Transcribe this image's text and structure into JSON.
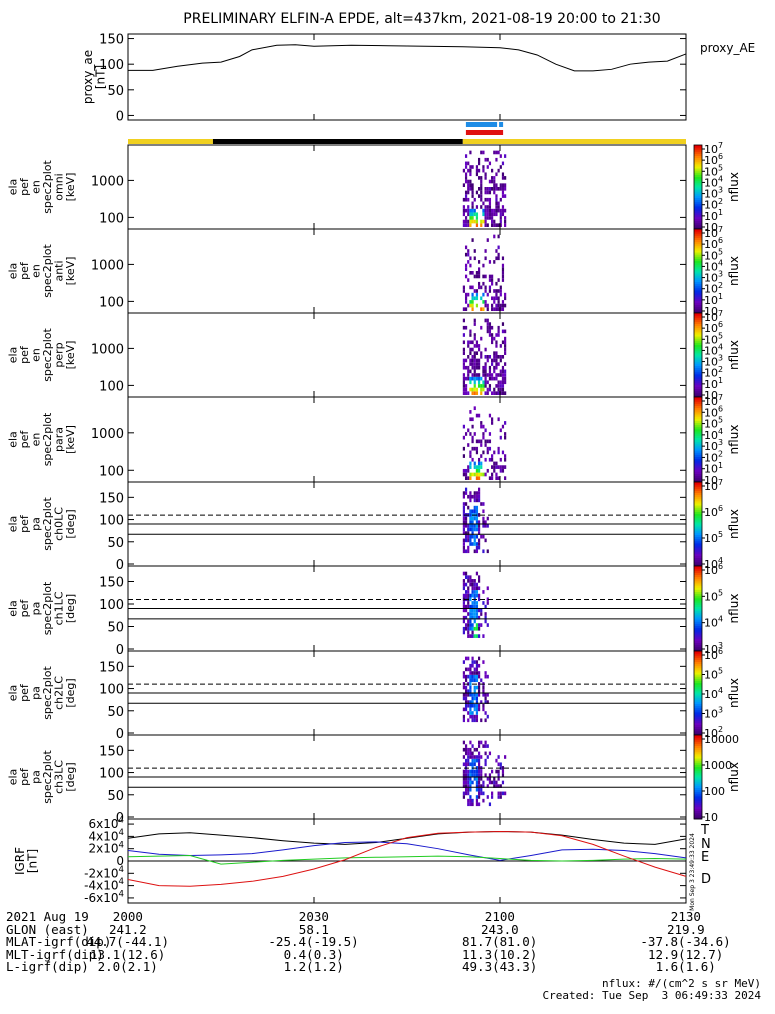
{
  "title": "PRELIMINARY ELFIN-A EPDE, alt=437km, 2021-08-19 20:00 to 21:30",
  "credits": {
    "nflux_units": "nflux: #/(cm^2 s sr MeV)",
    "created": "Created: Tue Sep  3 06:49:33 2024",
    "side_stamp": "Mon Sep  3 23:49:33 2024"
  },
  "time_axis": {
    "start_min": 0,
    "end_min": 90,
    "ticks": [
      {
        "min": 0,
        "label": "2000"
      },
      {
        "min": 30,
        "label": "2030"
      },
      {
        "min": 60,
        "label": "2100"
      },
      {
        "min": 90,
        "label": "2130"
      }
    ]
  },
  "footer": {
    "rows": [
      {
        "label": "2021 Aug 19",
        "values": [
          "2000",
          "2030",
          "2100",
          "2130"
        ]
      },
      {
        "label": "GLON (east)",
        "values": [
          "241.2",
          "58.1",
          "243.0",
          "219.9"
        ]
      },
      {
        "label": "MLAT-igrf(dip)",
        "values": [
          "44.7(-44.1)",
          "-25.4(-19.5)",
          "81.7(81.0)",
          "-37.8(-34.6)"
        ]
      },
      {
        "label": "MLT-igrf(dip)",
        "values": [
          "13.1(12.6)",
          "0.4(0.3)",
          "11.3(10.2)",
          "12.9(12.7)"
        ]
      },
      {
        "label": "L-igrf(dip)",
        "values": [
          "2.0(2.1)",
          "1.2(1.2)",
          "49.3(43.3)",
          "1.6(1.6)"
        ]
      }
    ]
  },
  "colors": {
    "sunlight": "#f0d020",
    "eclipse": "#000000",
    "science_blue": "#1e8ce6",
    "science_red": "#e01010",
    "grf_T": "#000000",
    "grf_N": "#1a1acc",
    "grf_E": "#22cc22",
    "grf_D": "#dd1111"
  },
  "bars": {
    "sun_segments": [
      {
        "start": 0,
        "end": 13.7,
        "state": "sunlight"
      },
      {
        "start": 13.7,
        "end": 54.0,
        "state": "eclipse"
      },
      {
        "start": 54.0,
        "end": 90,
        "state": "sunlight"
      }
    ],
    "science_blue": [
      54.5,
      60.5
    ],
    "science_red": [
      54.5,
      60.5
    ]
  },
  "colorbars": {
    "nflux_label": "nflux"
  },
  "chart_data": [
    {
      "type": "line",
      "panel": "proxy_ae",
      "ylabel": "proxy_ae [nT]",
      "legend": "proxy_AE",
      "ylim": [
        -5,
        155
      ],
      "yticks": [
        0,
        50,
        100,
        150
      ],
      "x": [
        0,
        4,
        8,
        12,
        15,
        18,
        20,
        24,
        27,
        30,
        36,
        42,
        48,
        54,
        60,
        63,
        66,
        69,
        72,
        75,
        78,
        81,
        84,
        87,
        90
      ],
      "values": [
        88,
        88,
        96,
        102,
        104,
        115,
        128,
        137,
        138,
        135,
        137,
        136,
        135,
        134,
        132,
        128,
        118,
        100,
        87,
        87,
        90,
        100,
        104,
        106,
        120
      ]
    },
    {
      "type": "heatmap",
      "panel": "omni",
      "ylabel": "ela pef en spec2plot omni [keV]",
      "ylog": true,
      "ylim": [
        55,
        8000
      ],
      "yticks": [
        100,
        1000
      ],
      "ytick_labels": [
        "100",
        "1000"
      ],
      "x_range": [
        54,
        61
      ],
      "colorbar_ticks": [
        "10",
        "10^1",
        "10^2",
        "10^3",
        "10^4",
        "10^5",
        "10^6",
        "10^7"
      ]
    },
    {
      "type": "heatmap",
      "panel": "anti",
      "ylabel": "ela pef en spec2plot anti [keV]",
      "ylog": true,
      "ylim": [
        55,
        8000
      ],
      "yticks": [
        100,
        1000
      ],
      "ytick_labels": [
        "100",
        "1000"
      ],
      "x_range": [
        54,
        61
      ],
      "colorbar_ticks": [
        "10",
        "10^1",
        "10^2",
        "10^3",
        "10^4",
        "10^5",
        "10^6",
        "10^7"
      ]
    },
    {
      "type": "heatmap",
      "panel": "perp",
      "ylabel": "ela pef en spec2plot perp [keV]",
      "ylog": true,
      "ylim": [
        55,
        8000
      ],
      "yticks": [
        100,
        1000
      ],
      "ytick_labels": [
        "100",
        "1000"
      ],
      "x_range": [
        54,
        61
      ],
      "colorbar_ticks": [
        "10",
        "10^1",
        "10^2",
        "10^3",
        "10^4",
        "10^5",
        "10^6",
        "10^7"
      ]
    },
    {
      "type": "heatmap",
      "panel": "para",
      "ylabel": "ela pef en spec2plot para [keV]",
      "ylog": true,
      "ylim": [
        55,
        8000
      ],
      "yticks": [
        100,
        1000
      ],
      "ytick_labels": [
        "100",
        "1000"
      ],
      "x_range": [
        54,
        61
      ],
      "colorbar_ticks": [
        "10",
        "10^1",
        "10^2",
        "10^3",
        "10^4",
        "10^5",
        "10^6",
        "10^7"
      ]
    },
    {
      "type": "heatmap",
      "panel": "ch0LC",
      "ylabel": "ela pef pa spec2plot ch0LC [deg]",
      "ylim": [
        0,
        180
      ],
      "yticks": [
        0,
        50,
        100,
        150
      ],
      "ref_dashed": 110,
      "ref_solid": [
        90,
        67
      ],
      "x_range": [
        54,
        58
      ],
      "colorbar_ticks": [
        "10^4",
        "10^5",
        "10^6",
        "10^7"
      ]
    },
    {
      "type": "heatmap",
      "panel": "ch1LC",
      "ylabel": "ela pef pa spec2plot ch1LC [deg]",
      "ylim": [
        0,
        180
      ],
      "yticks": [
        0,
        50,
        100,
        150
      ],
      "ref_dashed": 110,
      "ref_solid": [
        90,
        67
      ],
      "x_range": [
        54,
        58
      ],
      "colorbar_ticks": [
        "10^3",
        "10^4",
        "10^5",
        "10^6"
      ]
    },
    {
      "type": "heatmap",
      "panel": "ch2LC",
      "ylabel": "ela pef pa spec2plot ch2LC [deg]",
      "ylim": [
        0,
        180
      ],
      "yticks": [
        0,
        50,
        100,
        150
      ],
      "ref_dashed": 110,
      "ref_solid": [
        90,
        67
      ],
      "x_range": [
        54,
        58
      ],
      "colorbar_ticks": [
        "10^2",
        "10^3",
        "10^4",
        "10^5",
        "10^6"
      ]
    },
    {
      "type": "heatmap",
      "panel": "ch3LC",
      "ylabel": "ela pef pa spec2plot ch3LC [deg]",
      "ylim": [
        0,
        180
      ],
      "yticks": [
        0,
        50,
        100,
        150
      ],
      "ref_dashed": 110,
      "ref_solid": [
        90,
        67
      ],
      "x_range": [
        54,
        61
      ],
      "colorbar_ticks": [
        "10",
        "100",
        "1000",
        "10000"
      ]
    },
    {
      "type": "line",
      "panel": "igrf",
      "ylabel": "IGRF [nT]",
      "ylim": [
        -65000,
        65000
      ],
      "yticks": [
        -60000,
        -40000,
        -20000,
        0,
        20000,
        40000,
        60000
      ],
      "ytick_labels": [
        "-6x10^4",
        "-4x10^4",
        "-2x10^4",
        "0",
        "2x10^4",
        "4x10^4",
        "6x10^4"
      ],
      "x": [
        0,
        5,
        10,
        15,
        20,
        25,
        30,
        35,
        40,
        45,
        50,
        55,
        60,
        65,
        70,
        75,
        80,
        85,
        90
      ],
      "series": [
        {
          "name": "T",
          "values": [
            37000,
            44000,
            46000,
            42000,
            38000,
            33000,
            29000,
            27000,
            30000,
            37000,
            44000,
            47000,
            48000,
            47000,
            42000,
            35000,
            29000,
            27000,
            36000
          ]
        },
        {
          "name": "N",
          "values": [
            17000,
            11000,
            9000,
            10000,
            12000,
            18000,
            25000,
            30000,
            31000,
            28000,
            20000,
            10000,
            1000,
            9000,
            18000,
            19000,
            17000,
            12000,
            5000
          ]
        },
        {
          "name": "E",
          "values": [
            7000,
            8000,
            9000,
            -5000,
            -2000,
            1000,
            3000,
            5000,
            6000,
            7000,
            8000,
            7000,
            4000,
            1000,
            0,
            1000,
            3000,
            4000,
            3000
          ]
        },
        {
          "name": "D",
          "values": [
            -30000,
            -40000,
            -41000,
            -38000,
            -33000,
            -25000,
            -13000,
            2000,
            22000,
            38000,
            45000,
            47000,
            48000,
            47000,
            41000,
            27000,
            8000,
            -10000,
            -25000
          ]
        }
      ]
    }
  ]
}
